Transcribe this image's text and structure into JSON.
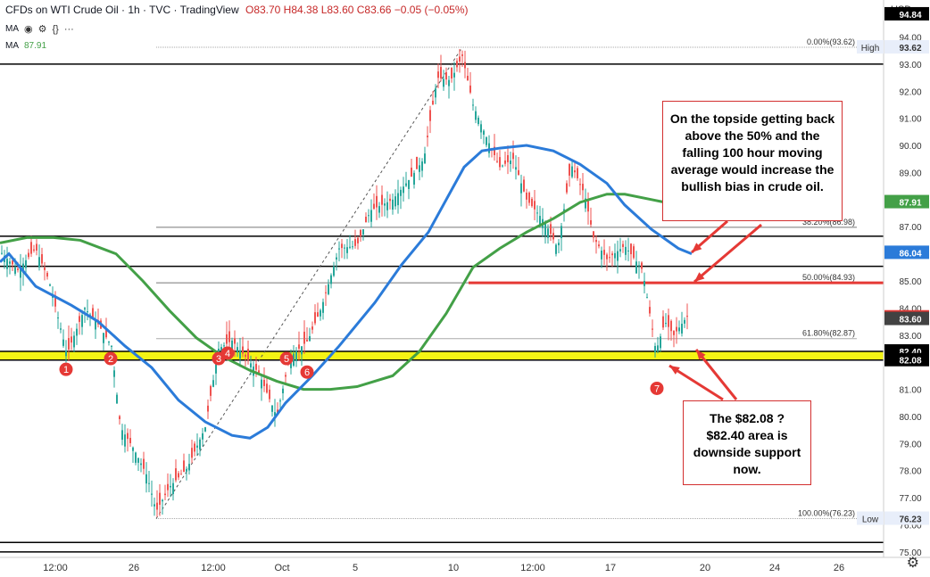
{
  "header": {
    "symbol": "CFDs on WTI Crude Oil · 1h · TVC · TradingView",
    "ohlc": "O83.70 H84.38 L83.60 C83.66 −0.05 (−0.05%)",
    "ma1_label": "MA",
    "ma2_label": "MA",
    "ma2_value": "87.91",
    "currency": "USD"
  },
  "icons": [
    "eye-icon",
    "gear-icon",
    "code-icon",
    "more-icon"
  ],
  "colors": {
    "ma_blue": "#2b7bd9",
    "ma_green": "#43a047",
    "red": "#e53935",
    "support_band": "#f4f414",
    "fib": "#9e9e9e"
  },
  "chart_data": {
    "type": "candlestick",
    "ylim": [
      74.8,
      95.2
    ],
    "x_ticks": [
      "12:00",
      "26",
      "12:00",
      "Oct",
      "5",
      "10",
      "12:00",
      "17",
      "20",
      "24",
      "26"
    ],
    "y_ticks": [
      "94.00",
      "93.00",
      "92.00",
      "91.00",
      "90.00",
      "89.00",
      "88.00",
      "87.00",
      "86.00",
      "85.00",
      "84.00",
      "83.00",
      "82.00",
      "81.00",
      "80.00",
      "79.00",
      "78.00",
      "77.00",
      "76.00",
      "75.00"
    ],
    "horizontal_lines": [
      {
        "value": 93.0,
        "label": "93.00"
      },
      {
        "value": 86.65,
        "label": "86.65"
      },
      {
        "value": 85.54,
        "label": "85.54"
      },
      {
        "value": 75.35,
        "label": "75.35"
      },
      {
        "value": 75.0,
        "label": "75.00"
      }
    ],
    "price_labels": [
      {
        "value": 94.84,
        "label": "94.84",
        "color": "#000000"
      },
      {
        "value": 93.62,
        "label": "93.62",
        "color": "#e8eefa",
        "tag": "High"
      },
      {
        "value": 87.91,
        "label": "87.91",
        "color": "#43a047"
      },
      {
        "value": 86.04,
        "label": "86.04",
        "color": "#2b7bd9"
      },
      {
        "value": 83.66,
        "label": "83.66",
        "color": "#e53935"
      },
      {
        "value": 83.6,
        "label": "83.60",
        "color": "#424242"
      },
      {
        "value": 82.4,
        "label": "82.40",
        "color": "#000000"
      },
      {
        "value": 82.08,
        "label": "82.08",
        "color": "#000000"
      },
      {
        "value": 76.23,
        "label": "76.23",
        "color": "#e8eefa",
        "tag": "Low"
      }
    ],
    "fib_levels": [
      {
        "pct": "0.00%",
        "value": 93.62,
        "label": "0.00%(93.62)"
      },
      {
        "pct": "38.20%",
        "value": 86.98,
        "label": "38.20%(86.98)"
      },
      {
        "pct": "50.00%",
        "value": 84.93,
        "label": "50.00%(84.93)"
      },
      {
        "pct": "61.80%",
        "value": 82.87,
        "label": "61.80%(82.87)"
      },
      {
        "pct": "100.00%",
        "value": 76.23,
        "label": "100.00%(76.23)"
      }
    ],
    "support_band": [
      82.08,
      82.4
    ],
    "resistance_line": 84.93,
    "ma_blue": {
      "name": "MA",
      "points": [
        [
          0,
          85.7
        ],
        [
          10,
          86.0
        ],
        [
          40,
          84.8
        ],
        [
          80,
          84.1
        ],
        [
          110,
          83.5
        ],
        [
          140,
          82.6
        ],
        [
          170,
          81.8
        ],
        [
          200,
          80.6
        ],
        [
          230,
          79.8
        ],
        [
          260,
          79.3
        ],
        [
          280,
          79.2
        ],
        [
          300,
          79.6
        ],
        [
          320,
          80.5
        ],
        [
          350,
          81.5
        ],
        [
          380,
          82.6
        ],
        [
          420,
          84.2
        ],
        [
          450,
          85.6
        ],
        [
          480,
          86.8
        ],
        [
          500,
          88.0
        ],
        [
          520,
          89.2
        ],
        [
          540,
          89.8
        ],
        [
          560,
          89.9
        ],
        [
          590,
          90.0
        ],
        [
          620,
          89.8
        ],
        [
          650,
          89.3
        ],
        [
          680,
          88.6
        ],
        [
          700,
          87.8
        ],
        [
          730,
          86.9
        ],
        [
          760,
          86.2
        ],
        [
          775,
          86.0
        ]
      ]
    },
    "ma_green": {
      "name": "MA",
      "points": [
        [
          0,
          86.4
        ],
        [
          30,
          86.6
        ],
        [
          60,
          86.6
        ],
        [
          90,
          86.5
        ],
        [
          130,
          86.0
        ],
        [
          160,
          85.0
        ],
        [
          190,
          83.9
        ],
        [
          220,
          82.9
        ],
        [
          250,
          82.2
        ],
        [
          280,
          81.7
        ],
        [
          310,
          81.3
        ],
        [
          340,
          81.0
        ],
        [
          370,
          81.0
        ],
        [
          400,
          81.1
        ],
        [
          440,
          81.5
        ],
        [
          470,
          82.4
        ],
        [
          500,
          83.8
        ],
        [
          530,
          85.5
        ],
        [
          560,
          86.2
        ],
        [
          590,
          86.8
        ],
        [
          620,
          87.3
        ],
        [
          650,
          87.9
        ],
        [
          680,
          88.2
        ],
        [
          700,
          88.2
        ],
        [
          730,
          88.0
        ],
        [
          745,
          87.9
        ]
      ]
    },
    "numbered_lows": [
      {
        "label": "1",
        "x": 74,
        "value": 82.0
      },
      {
        "label": "2",
        "x": 124,
        "value": 82.4
      },
      {
        "label": "3",
        "x": 245,
        "value": 82.4
      },
      {
        "label": "4",
        "x": 255,
        "value": 82.6
      },
      {
        "label": "5",
        "x": 321,
        "value": 82.4
      },
      {
        "label": "6",
        "x": 344,
        "value": 81.9
      },
      {
        "label": "7",
        "x": 736,
        "value": 81.3
      }
    ],
    "trendline": {
      "from": [
        175,
        76.23
      ],
      "to": [
        518,
        93.62
      ]
    },
    "annotations": [
      {
        "id": "top",
        "text": "On the topside getting back above the 50% and the falling 100 hour moving average would increase the bullish bias in crude oil."
      },
      {
        "id": "bottom",
        "text": "The $82.08 ? $82.40 area is downside support now."
      }
    ]
  }
}
